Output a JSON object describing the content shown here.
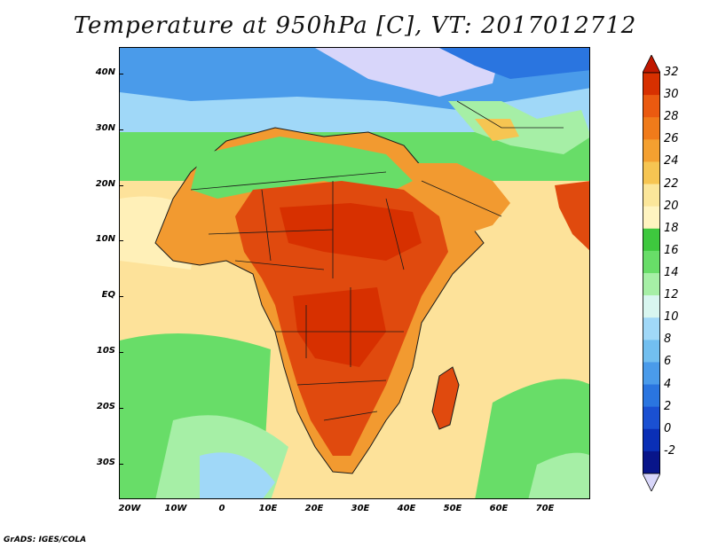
{
  "title": "Temperature at 950hPa [C], VT: 2017012712",
  "footer": "GrADS: IGES/COLA",
  "lat_labels": [
    "40N",
    "30N",
    "20N",
    "10N",
    "EQ",
    "10S",
    "20S",
    "30S"
  ],
  "lon_labels": [
    "20W",
    "10W",
    "0",
    "10E",
    "20E",
    "30E",
    "40E",
    "50E",
    "60E",
    "70E"
  ],
  "colorbar": {
    "labels": [
      "32",
      "30",
      "28",
      "26",
      "24",
      "22",
      "20",
      "18",
      "16",
      "14",
      "12",
      "10",
      "8",
      "6",
      "4",
      "2",
      "0",
      "-2"
    ],
    "colors": [
      "#d73000",
      "#ea5a10",
      "#f07b1a",
      "#f4a030",
      "#f6c552",
      "#fbe69a",
      "#fff4c0",
      "#3ec83e",
      "#68dd68",
      "#a6efa6",
      "#d8f6f0",
      "#a0d8f8",
      "#72bff0",
      "#4a9bea",
      "#2a75e0",
      "#1a50d2",
      "#0a2fb6",
      "#08158a",
      "#d8d6fa"
    ],
    "top_arrow_color": "#c01800",
    "bottom_arrow_color": "#d8d6fa"
  },
  "colors": {
    "ocean_warm": "#fde29a",
    "ocean_mild": "#fff0b8",
    "ocean_cool": "#68dd68",
    "land_hot": "#e04a0e",
    "land_warm": "#f29a30",
    "north_cool": "#4a9bea",
    "north_cold": "#72bff0",
    "border": "#1a1a1a"
  }
}
